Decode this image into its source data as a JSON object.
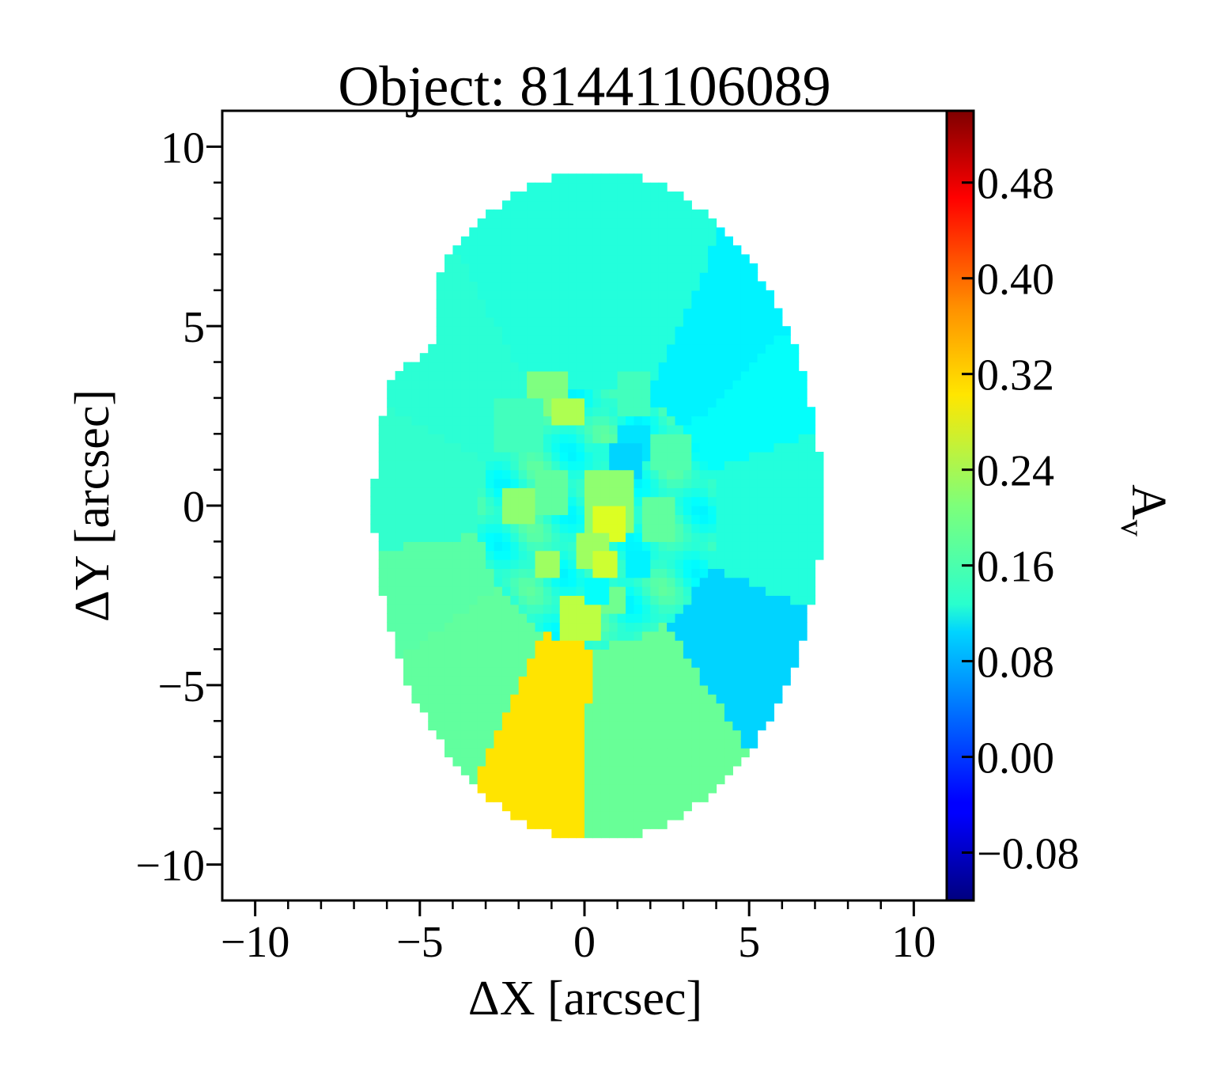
{
  "chart_data": {
    "type": "heatmap",
    "title": "Object: 81441106089",
    "xlabel": "ΔX [arcsec]",
    "ylabel": "ΔY [arcsec]",
    "xlim": [
      -11,
      11
    ],
    "ylim": [
      -11,
      11
    ],
    "x_ticks": [
      -10,
      -5,
      0,
      5,
      10
    ],
    "x_tick_labels": [
      "−10",
      "−5",
      "0",
      "5",
      "10"
    ],
    "y_ticks": [
      -10,
      -5,
      0,
      5,
      10
    ],
    "y_tick_labels": [
      "−10",
      "−5",
      "0",
      "5",
      "10"
    ],
    "colorbar": {
      "label": "A",
      "label_subscript": "v",
      "colormap": "jet",
      "range": [
        -0.12,
        0.54
      ],
      "ticks": [
        -0.08,
        0.0,
        0.08,
        0.16,
        0.24,
        0.32,
        0.4,
        0.48
      ],
      "tick_labels": [
        "−0.08",
        "0.00",
        "0.08",
        "0.16",
        "0.24",
        "0.32",
        "0.40",
        "0.48"
      ]
    },
    "map": {
      "ellipse": {
        "center": [
          0.4,
          0.0
        ],
        "semi_x": 6.8,
        "semi_y": 9.3
      },
      "notch": {
        "center": [
          -6.0,
          5.4
        ],
        "radius": 1.6
      },
      "sector_center": [
        0.4,
        -0.3
      ],
      "sectors": [
        {
          "angle_deg": 0,
          "value": 0.15
        },
        {
          "angle_deg": 20,
          "value": 0.13
        },
        {
          "angle_deg": 42,
          "value": 0.12
        },
        {
          "angle_deg": 65,
          "value": 0.15
        },
        {
          "angle_deg": 100,
          "value": 0.15
        },
        {
          "angle_deg": 120,
          "value": 0.155
        },
        {
          "angle_deg": 155,
          "value": 0.16
        },
        {
          "angle_deg": 188,
          "value": 0.185
        },
        {
          "angle_deg": 213,
          "value": 0.19
        },
        {
          "angle_deg": 243,
          "value": 0.31
        },
        {
          "angle_deg": 267,
          "value": 0.195
        },
        {
          "angle_deg": 305,
          "value": 0.1
        },
        {
          "angle_deg": 338,
          "value": 0.15
        }
      ],
      "inner_radius": 3.6,
      "blobs": [
        {
          "x": -1.1,
          "y": 3.1,
          "r": 0.6,
          "value": 0.21
        },
        {
          "x": -0.5,
          "y": 2.7,
          "r": 0.4,
          "value": 0.24
        },
        {
          "x": 1.5,
          "y": 3.2,
          "r": 0.6,
          "value": 0.17
        },
        {
          "x": 2.7,
          "y": 1.5,
          "r": 0.6,
          "value": 0.18
        },
        {
          "x": -2.0,
          "y": 2.2,
          "r": 0.7,
          "value": 0.17
        },
        {
          "x": 1.6,
          "y": 1.8,
          "r": 0.5,
          "value": 0.11
        },
        {
          "x": 1.3,
          "y": 1.2,
          "r": 0.45,
          "value": 0.1
        },
        {
          "x": 0.8,
          "y": 0.1,
          "r": 0.8,
          "value": 0.22
        },
        {
          "x": 0.7,
          "y": -0.6,
          "r": 0.5,
          "value": 0.27
        },
        {
          "x": 0.2,
          "y": -1.2,
          "r": 0.5,
          "value": 0.23
        },
        {
          "x": 0.6,
          "y": -1.7,
          "r": 0.35,
          "value": 0.26
        },
        {
          "x": -1.1,
          "y": -1.6,
          "r": 0.4,
          "value": 0.23
        },
        {
          "x": -2.0,
          "y": 0.0,
          "r": 0.45,
          "value": 0.22
        },
        {
          "x": -0.1,
          "y": -3.1,
          "r": 0.6,
          "value": 0.25
        },
        {
          "x": 0.9,
          "y": -2.7,
          "r": 0.4,
          "value": 0.2
        },
        {
          "x": -1.0,
          "y": 0.4,
          "r": 0.6,
          "value": 0.19
        },
        {
          "x": 0.5,
          "y": 1.5,
          "r": 0.35,
          "value": 0.15
        },
        {
          "x": 1.6,
          "y": -1.6,
          "r": 0.45,
          "value": 0.12
        },
        {
          "x": 0.4,
          "y": -2.4,
          "r": 0.35,
          "value": 0.13
        },
        {
          "x": 2.2,
          "y": -0.4,
          "r": 0.55,
          "value": 0.19
        }
      ]
    }
  }
}
